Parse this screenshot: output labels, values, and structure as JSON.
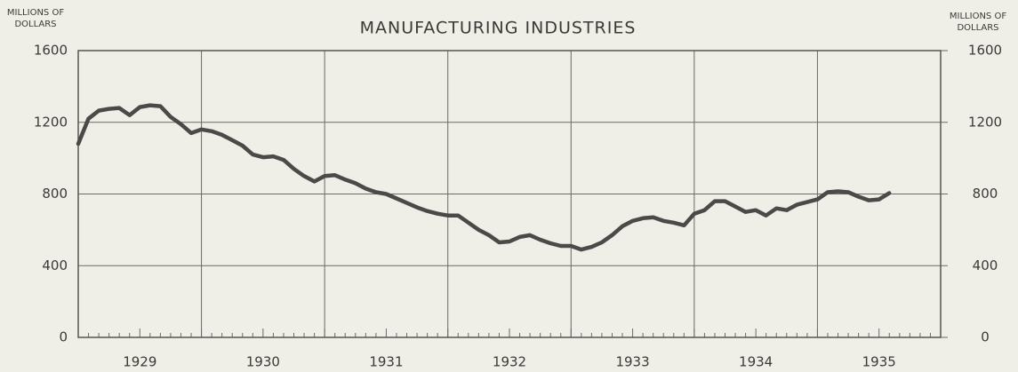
{
  "chart_data": {
    "type": "line",
    "title": "MANUFACTURING INDUSTRIES",
    "ylabel": [
      "MILLIONS OF",
      "DOLLARS"
    ],
    "y2label": [
      "MILLIONS OF",
      "DOLLARS"
    ],
    "x": [
      1929.0,
      1929.083,
      1929.167,
      1929.25,
      1929.333,
      1929.417,
      1929.5,
      1929.583,
      1929.667,
      1929.75,
      1929.833,
      1929.917,
      1930.0,
      1930.083,
      1930.167,
      1930.25,
      1930.333,
      1930.417,
      1930.5,
      1930.583,
      1930.667,
      1930.75,
      1930.833,
      1930.917,
      1931.0,
      1931.083,
      1931.167,
      1931.25,
      1931.333,
      1931.417,
      1931.5,
      1931.583,
      1931.667,
      1931.75,
      1931.833,
      1931.917,
      1932.0,
      1932.083,
      1932.167,
      1932.25,
      1932.333,
      1932.417,
      1932.5,
      1932.583,
      1932.667,
      1932.75,
      1932.833,
      1932.917,
      1933.0,
      1933.083,
      1933.167,
      1933.25,
      1933.333,
      1933.417,
      1933.5,
      1933.583,
      1933.667,
      1933.75,
      1933.833,
      1933.917,
      1934.0,
      1934.083,
      1934.167,
      1934.25,
      1934.333,
      1934.417,
      1934.5,
      1934.583,
      1934.667,
      1934.75,
      1934.833,
      1934.917,
      1935.0,
      1935.083,
      1935.167,
      1935.25,
      1935.333,
      1935.417,
      1935.5,
      1935.583
    ],
    "series": [
      {
        "name": "Manufacturing industries",
        "color": "#4a4a48",
        "values": [
          1080,
          1220,
          1265,
          1275,
          1280,
          1240,
          1285,
          1295,
          1290,
          1230,
          1190,
          1140,
          1160,
          1150,
          1130,
          1100,
          1070,
          1020,
          1005,
          1010,
          990,
          940,
          900,
          870,
          900,
          905,
          880,
          860,
          830,
          810,
          800,
          775,
          750,
          725,
          705,
          690,
          680,
          680,
          640,
          600,
          570,
          530,
          535,
          560,
          570,
          545,
          525,
          510,
          510,
          490,
          505,
          530,
          570,
          620,
          650,
          665,
          670,
          650,
          640,
          625,
          690,
          710,
          760,
          760,
          730,
          700,
          710,
          680,
          720,
          710,
          740,
          755,
          770,
          810,
          815,
          810,
          785,
          765,
          770,
          805
        ]
      }
    ],
    "xlim": [
      1929,
      1936
    ],
    "xticks": [
      {
        "value": 1929.5,
        "label": "1929"
      },
      {
        "value": 1930.5,
        "label": "1930"
      },
      {
        "value": 1931.5,
        "label": "1931"
      },
      {
        "value": 1932.5,
        "label": "1932"
      },
      {
        "value": 1933.5,
        "label": "1933"
      },
      {
        "value": 1934.5,
        "label": "1934"
      },
      {
        "value": 1935.5,
        "label": "1935"
      }
    ],
    "ylim": [
      0,
      1600
    ],
    "yticks": [
      0,
      400,
      800,
      1200,
      1600
    ],
    "y2lim": [
      0,
      1600
    ],
    "y2ticks": [
      0,
      400,
      800,
      1200,
      1600
    ],
    "grid": true
  }
}
